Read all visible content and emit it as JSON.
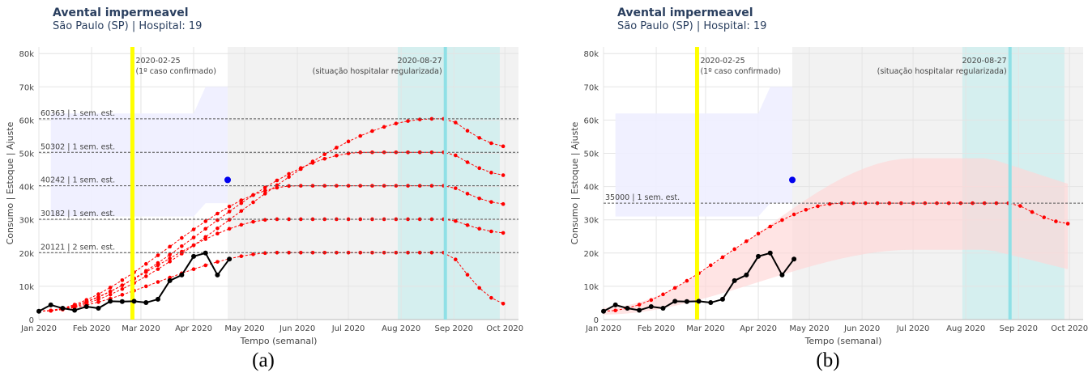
{
  "chart_data": [
    {
      "panel_label": "(a)",
      "type": "line",
      "title": "Avental impermeavel",
      "subtitle": "São Paulo (SP) | Hospital: 19",
      "xlabel": "Tempo (semanal)",
      "ylabel": "Consumo | Estoque | Ajuste",
      "ylim": [
        0,
        82000
      ],
      "xlim": [
        "2020-01-01",
        "2020-10-09"
      ],
      "x_ticks": [
        "Jan 2020",
        "Feb 2020",
        "Mar 2020",
        "Apr 2020",
        "May 2020",
        "Jun 2020",
        "Jul 2020",
        "Aug 2020",
        "Sep 2020",
        "Oct 2020"
      ],
      "y_ticks": [
        "0",
        "10k",
        "20k",
        "30k",
        "40k",
        "50k",
        "60k",
        "70k",
        "80k"
      ],
      "grid": true,
      "colors": {
        "consumption": "#000000",
        "fit": "#ff0000",
        "stock_band": "#eeeeff",
        "forecast_region": "#f2f2f2",
        "teal_region": "#cdeeee",
        "case_line": "#ffff00",
        "regularized_line": "#8fe0e6"
      },
      "vlines": [
        {
          "date": "2020-02-25",
          "label_line1": "2020-02-25",
          "label_line2": "(1º caso confirmado)"
        },
        {
          "date": "2020-08-27",
          "label_line1": "2020-08-27",
          "label_line2": "(situação hospitalar regularizada)"
        }
      ],
      "regions": {
        "forecast_start": "2020-04-21",
        "teal_start": "2020-07-30",
        "teal_end": "2020-09-28"
      },
      "consumption": {
        "x": [
          "2020-01-01",
          "2020-01-08",
          "2020-01-15",
          "2020-01-22",
          "2020-01-29",
          "2020-02-05",
          "2020-02-12",
          "2020-02-19",
          "2020-02-26",
          "2020-03-04",
          "2020-03-11",
          "2020-03-18",
          "2020-03-25",
          "2020-04-01",
          "2020-04-08",
          "2020-04-15",
          "2020-04-22"
        ],
        "y": [
          2500,
          4400,
          3400,
          2800,
          3900,
          3400,
          5500,
          5400,
          5500,
          5100,
          6100,
          11700,
          13400,
          19000,
          20000,
          13400,
          18200
        ]
      },
      "stock_point": {
        "x": "2020-04-21",
        "y": 42000
      },
      "stock_band": {
        "x": [
          "2020-01-08",
          "2020-04-01",
          "2020-04-08",
          "2020-04-21"
        ],
        "upper": [
          62000,
          62000,
          70000,
          70000
        ],
        "lower": [
          31000,
          31000,
          35000,
          35000
        ]
      },
      "fit_curves": [
        {
          "peak": 60363,
          "label": "60363 | 1 sem. est."
        },
        {
          "peak": 50302,
          "label": "50302 | 1 sem. est."
        },
        {
          "peak": 40242,
          "label": "40242 | 1 sem. est."
        },
        {
          "peak": 30182,
          "label": "30182 | 1 sem. est."
        },
        {
          "peak": 20121,
          "label": "20121 | 2 sem. est."
        }
      ]
    },
    {
      "panel_label": "(b)",
      "type": "line",
      "title": "Avental impermeavel",
      "subtitle": "São Paulo (SP) | Hospital: 19",
      "xlabel": "Tempo (semanal)",
      "ylabel": "Consumo | Estoque | Ajuste",
      "ylim": [
        0,
        82000
      ],
      "xlim": [
        "2020-01-01",
        "2020-10-09"
      ],
      "x_ticks": [
        "Jan 2020",
        "Feb 2020",
        "Mar 2020",
        "Apr 2020",
        "May 2020",
        "Jun 2020",
        "Jul 2020",
        "Aug 2020",
        "Sep 2020",
        "Oct 2020"
      ],
      "y_ticks": [
        "0",
        "10k",
        "20k",
        "30k",
        "40k",
        "50k",
        "60k",
        "70k",
        "80k"
      ],
      "grid": true,
      "colors": {
        "consumption": "#000000",
        "fit": "#ff0000",
        "stock_band": "#eeeeff",
        "forecast_region": "#f2f2f2",
        "teal_region": "#cdeeee",
        "case_line": "#ffff00",
        "regularized_line": "#8fe0e6",
        "confidence_band": "#ffd6d6"
      },
      "vlines": [
        {
          "date": "2020-02-25",
          "label_line1": "2020-02-25",
          "label_line2": "(1º caso confirmado)"
        },
        {
          "date": "2020-08-27",
          "label_line1": "2020-08-27",
          "label_line2": "(situação hospitalar regularizada)"
        }
      ],
      "regions": {
        "forecast_start": "2020-04-21",
        "teal_start": "2020-07-30",
        "teal_end": "2020-09-28"
      },
      "consumption": {
        "x": [
          "2020-01-01",
          "2020-01-08",
          "2020-01-15",
          "2020-01-22",
          "2020-01-29",
          "2020-02-05",
          "2020-02-12",
          "2020-02-19",
          "2020-02-26",
          "2020-03-04",
          "2020-03-11",
          "2020-03-18",
          "2020-03-25",
          "2020-04-01",
          "2020-04-08",
          "2020-04-15",
          "2020-04-22"
        ],
        "y": [
          2500,
          4400,
          3400,
          2800,
          3900,
          3400,
          5500,
          5400,
          5500,
          5100,
          6100,
          11700,
          13400,
          19000,
          20000,
          13400,
          18200
        ]
      },
      "stock_point": {
        "x": "2020-04-21",
        "y": 42000
      },
      "stock_band": {
        "x": [
          "2020-01-08",
          "2020-04-01",
          "2020-04-08",
          "2020-04-21"
        ],
        "upper": [
          62000,
          62000,
          70000,
          70000
        ],
        "lower": [
          31000,
          31000,
          35000,
          35000
        ]
      },
      "fit_curves": [
        {
          "peak": 35000,
          "label": "35000 | 1 sem. est."
        }
      ],
      "confidence_band": {
        "upper_peak": 48500,
        "lower_peak": 21000
      }
    }
  ]
}
